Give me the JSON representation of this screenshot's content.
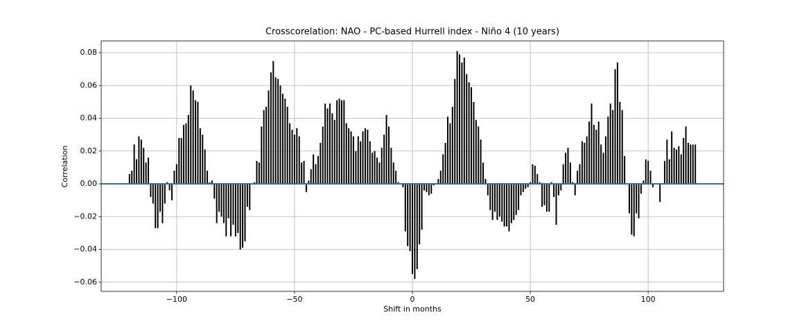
{
  "chart_data": {
    "type": "xcorr",
    "title": "Crosscorelation: NAO - PC-based Hurrell index - Niño 4 (10 years)",
    "x_label": "Shift in months",
    "y_label": "Correlation",
    "x": [
      -120,
      -119,
      -118,
      -117,
      -116,
      -115,
      -114,
      -113,
      -112,
      -111,
      -110,
      -109,
      -108,
      -107,
      -106,
      -105,
      -104,
      -103,
      -102,
      -101,
      -100,
      -99,
      -98,
      -97,
      -96,
      -95,
      -94,
      -93,
      -92,
      -91,
      -90,
      -89,
      -88,
      -87,
      -86,
      -85,
      -84,
      -83,
      -82,
      -81,
      -80,
      -79,
      -78,
      -77,
      -76,
      -75,
      -74,
      -73,
      -72,
      -71,
      -70,
      -69,
      -68,
      -67,
      -66,
      -65,
      -64,
      -63,
      -62,
      -61,
      -60,
      -59,
      -58,
      -57,
      -56,
      -55,
      -54,
      -53,
      -52,
      -51,
      -50,
      -49,
      -48,
      -47,
      -46,
      -45,
      -44,
      -43,
      -42,
      -41,
      -40,
      -39,
      -38,
      -37,
      -36,
      -35,
      -34,
      -33,
      -32,
      -31,
      -30,
      -29,
      -28,
      -27,
      -26,
      -25,
      -24,
      -23,
      -22,
      -21,
      -20,
      -19,
      -18,
      -17,
      -16,
      -15,
      -14,
      -13,
      -12,
      -11,
      -10,
      -9,
      -8,
      -7,
      -6,
      -5,
      -4,
      -3,
      -2,
      -1,
      0,
      1,
      2,
      3,
      4,
      5,
      6,
      7,
      8,
      9,
      10,
      11,
      12,
      13,
      14,
      15,
      16,
      17,
      18,
      19,
      20,
      21,
      22,
      23,
      24,
      25,
      26,
      27,
      28,
      29,
      30,
      31,
      32,
      33,
      34,
      35,
      36,
      37,
      38,
      39,
      40,
      41,
      42,
      43,
      44,
      45,
      46,
      47,
      48,
      49,
      50,
      51,
      52,
      53,
      54,
      55,
      56,
      57,
      58,
      59,
      60,
      61,
      62,
      63,
      64,
      65,
      66,
      67,
      68,
      69,
      70,
      71,
      72,
      73,
      74,
      75,
      76,
      77,
      78,
      79,
      80,
      81,
      82,
      83,
      84,
      85,
      86,
      87,
      88,
      89,
      90,
      91,
      92,
      93,
      94,
      95,
      96,
      97,
      98,
      99,
      100,
      101,
      102,
      103,
      104,
      105,
      106,
      107,
      108,
      109,
      110,
      111,
      112,
      113,
      114,
      115,
      116,
      117,
      118,
      119,
      120
    ],
    "values": [
      0.006,
      0.008,
      0.024,
      0.015,
      0.029,
      0.027,
      0.022,
      0.013,
      0.016,
      -0.008,
      -0.012,
      -0.027,
      -0.027,
      -0.017,
      -0.024,
      -0.012,
      0.001,
      -0.004,
      -0.01,
      0.008,
      0.012,
      0.028,
      0.028,
      0.036,
      0.037,
      0.042,
      0.06,
      0.057,
      0.051,
      0.05,
      0.034,
      0.03,
      0.021,
      0.008,
      0.001,
      0.002,
      -0.009,
      -0.024,
      -0.017,
      -0.02,
      -0.024,
      -0.032,
      -0.021,
      -0.032,
      -0.025,
      -0.032,
      -0.03,
      -0.04,
      -0.039,
      -0.035,
      -0.014,
      -0.016,
      0.0,
      0.001,
      0.014,
      0.013,
      0.035,
      0.045,
      0.047,
      0.057,
      0.068,
      0.075,
      0.065,
      0.064,
      0.06,
      0.055,
      0.052,
      0.047,
      0.037,
      0.033,
      0.03,
      0.034,
      0.029,
      0.013,
      0.014,
      -0.005,
      0.002,
      0.009,
      0.018,
      0.012,
      0.017,
      0.025,
      0.035,
      0.049,
      0.046,
      0.049,
      0.043,
      0.039,
      0.051,
      0.052,
      0.051,
      0.051,
      0.037,
      0.034,
      0.032,
      0.029,
      0.02,
      0.029,
      0.026,
      0.032,
      0.034,
      0.033,
      0.026,
      0.019,
      0.02,
      0.016,
      0.013,
      0.022,
      0.03,
      0.042,
      0.035,
      0.022,
      0.013,
      0.008,
      0.001,
      0.0,
      -0.002,
      -0.029,
      -0.038,
      -0.041,
      -0.055,
      -0.058,
      -0.052,
      -0.037,
      -0.028,
      -0.004,
      -0.005,
      -0.007,
      -0.006,
      -0.001,
      0.0,
      0.003,
      0.008,
      0.018,
      0.025,
      0.041,
      0.037,
      0.047,
      0.064,
      0.081,
      0.079,
      0.074,
      0.077,
      0.067,
      0.062,
      0.059,
      0.05,
      0.039,
      0.035,
      0.027,
      0.013,
      0.003,
      -0.007,
      -0.016,
      -0.022,
      -0.017,
      -0.022,
      -0.02,
      -0.023,
      -0.026,
      -0.026,
      -0.029,
      -0.024,
      -0.022,
      -0.019,
      -0.016,
      -0.007,
      -0.005,
      -0.003,
      -0.002,
      0.001,
      0.012,
      0.011,
      0.006,
      0.001,
      -0.014,
      -0.013,
      -0.017,
      -0.017,
      0.001,
      -0.008,
      -0.025,
      -0.007,
      -0.004,
      0.012,
      0.019,
      0.022,
      0.013,
      0.001,
      -0.007,
      0.008,
      0.012,
      0.026,
      0.025,
      0.029,
      0.038,
      0.049,
      0.036,
      0.033,
      0.038,
      0.024,
      0.019,
      0.029,
      0.041,
      0.049,
      0.045,
      0.07,
      0.074,
      0.05,
      0.045,
      0.017,
      0.0,
      -0.018,
      -0.031,
      -0.032,
      -0.018,
      -0.021,
      -0.006,
      0.002,
      0.015,
      0.014,
      0.008,
      -0.002,
      0.0,
      0.0,
      -0.011,
      0.0,
      0.014,
      0.027,
      0.015,
      0.032,
      0.022,
      0.021,
      0.023,
      0.018,
      0.028,
      0.035,
      0.025,
      0.024,
      0.024,
      0.024
    ],
    "color": "#000000",
    "baseline_color": "#1f77b4",
    "xlim": [
      -132,
      132
    ],
    "xticks": [
      {
        "value": -100,
        "label": "−100"
      },
      {
        "value": -50,
        "label": "−50"
      },
      0,
      50,
      100
    ],
    "ylim": [
      -0.0656,
      0.0872
    ],
    "yticks": [
      {
        "value": -0.06,
        "label": "−0.06"
      },
      {
        "value": -0.04,
        "label": "−0.04"
      },
      {
        "value": -0.02,
        "label": "−0.02"
      },
      {
        "value": 0,
        "label": "0.00"
      },
      {
        "value": 0.02,
        "label": "0.02"
      },
      {
        "value": 0.04,
        "label": "0.04"
      },
      {
        "value": 0.06,
        "label": "0.06"
      },
      {
        "value": 0.08,
        "label": "0.08"
      }
    ],
    "grid": true
  }
}
